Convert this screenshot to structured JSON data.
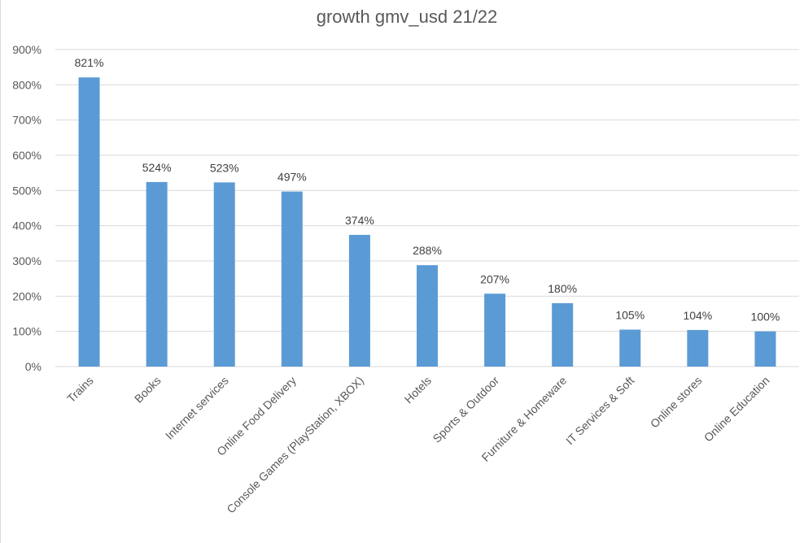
{
  "chart_data": {
    "type": "bar",
    "title": "growth gmv_usd 21/22",
    "categories": [
      "Trains",
      "Books",
      "Internet services",
      "Online Food Delivery",
      "Console Games (PlayStation, XBOX)",
      "Hotels",
      "Sports & Outdoor",
      "Furniture & Homeware",
      "IT Services & Soft",
      "Online stores",
      "Online Education"
    ],
    "values": [
      821,
      524,
      523,
      497,
      374,
      288,
      207,
      180,
      105,
      104,
      100
    ],
    "data_labels": [
      "821%",
      "524%",
      "523%",
      "497%",
      "374%",
      "288%",
      "207%",
      "180%",
      "105%",
      "104%",
      "100%"
    ],
    "ylim": [
      0,
      900
    ],
    "y_ticks": [
      "0%",
      "100%",
      "200%",
      "300%",
      "400%",
      "500%",
      "600%",
      "700%",
      "800%",
      "900%"
    ],
    "xlabel": "",
    "ylabel": "",
    "grid": "horizontal",
    "legend": "none",
    "colors": {
      "bar": "#5b9bd5",
      "grid": "#d9d9d9",
      "text": "#595959"
    }
  }
}
